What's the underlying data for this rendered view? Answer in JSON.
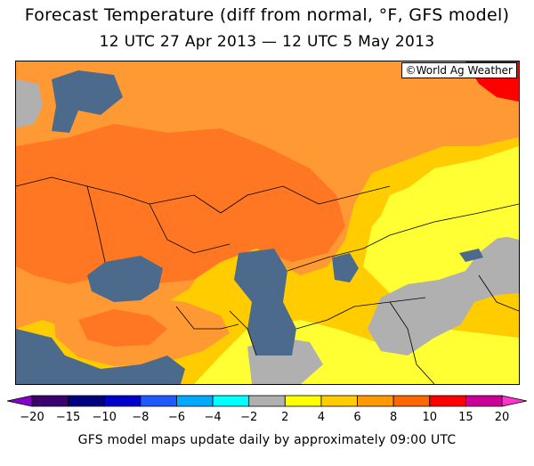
{
  "title": "Forecast Temperature (diff from normal, °F, GFS model)",
  "subtitle": "12 UTC 27 Apr 2013 — 12 UTC 5 May 2013",
  "credit": "©World Ag Weather",
  "footer": "GFS model maps update daily by approximately 09:00 UTC",
  "legend": {
    "colors": [
      "#8800cc",
      "#3a0070",
      "#000080",
      "#0000cc",
      "#1e5aff",
      "#00aaff",
      "#00ffff",
      "#b0b0b0",
      "#ffff00",
      "#ffcc00",
      "#ff9900",
      "#ff6600",
      "#ff0000",
      "#cc0099",
      "#ff33cc"
    ],
    "ticks": [
      "−20",
      "−15",
      "−10",
      "−8",
      "−6",
      "−4",
      "−2",
      "2",
      "4",
      "6",
      "8",
      "10",
      "15",
      "20"
    ]
  },
  "map_colors": {
    "water": "#4c6a8c",
    "neutral": "#b0b0b0",
    "yellow": "#ffff33",
    "gold": "#ffcc00",
    "orange": "#ff9933",
    "dark_orange": "#ff7722",
    "red": "#ff0000"
  }
}
